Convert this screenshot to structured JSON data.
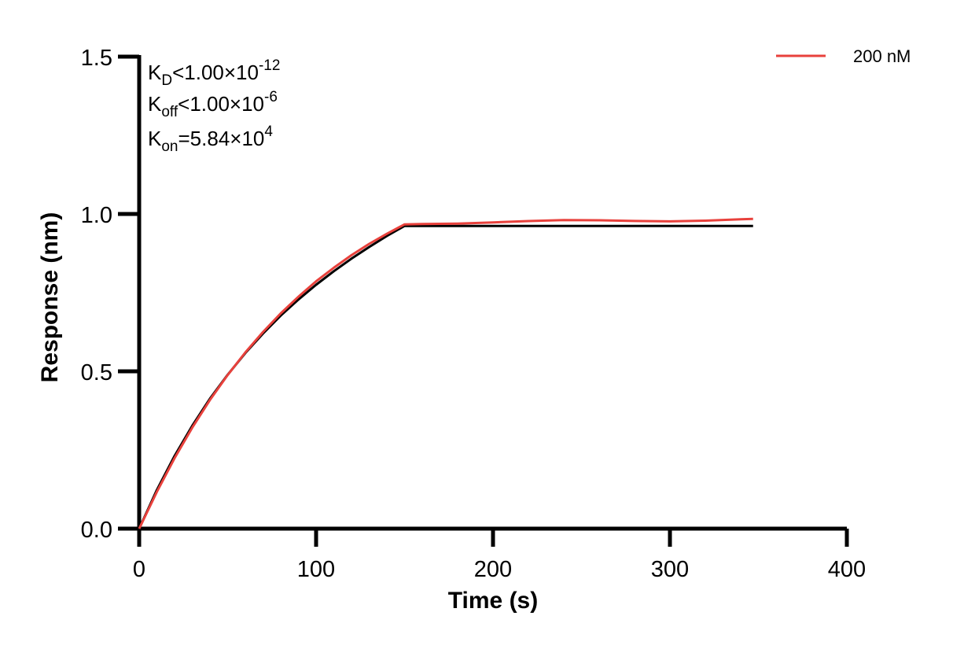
{
  "chart_data": {
    "type": "line",
    "xlabel": "Time (s)",
    "ylabel": "Response (nm)",
    "xlim": [
      0,
      400
    ],
    "ylim": [
      0,
      1.5
    ],
    "x_ticks": [
      "0",
      "100",
      "200",
      "300",
      "400"
    ],
    "y_ticks": [
      "0.0",
      "0.5",
      "1.0",
      "1.5"
    ],
    "grid": false,
    "legend_position": "top-right",
    "legend": [
      "200 nM"
    ],
    "annotations": [
      {
        "base": "K",
        "sub": "D",
        "op": "<",
        "value": "1.00×10",
        "exp": "-12"
      },
      {
        "base": "K",
        "sub": "off",
        "op": "<",
        "value": "1.00×10",
        "exp": "-6"
      },
      {
        "base": "K",
        "sub": "on",
        "op": "=",
        "value": "5.84×10",
        "exp": "4"
      }
    ],
    "series": [
      {
        "name": "200 nM",
        "role": "measured",
        "color": "#e8413c",
        "x": [
          0,
          10,
          20,
          30,
          40,
          50,
          60,
          70,
          80,
          90,
          100,
          110,
          120,
          130,
          140,
          150,
          160,
          180,
          200,
          220,
          240,
          260,
          280,
          300,
          320,
          340,
          347
        ],
        "y": [
          0.0,
          0.117,
          0.224,
          0.321,
          0.409,
          0.488,
          0.56,
          0.625,
          0.684,
          0.737,
          0.786,
          0.829,
          0.869,
          0.905,
          0.937,
          0.967,
          0.97,
          0.973,
          0.975,
          0.976,
          0.977,
          0.978,
          0.979,
          0.98,
          0.981,
          0.982,
          0.981
        ]
      },
      {
        "role": "fit",
        "color": "#000000",
        "x": [
          0,
          10,
          20,
          30,
          40,
          50,
          60,
          70,
          80,
          90,
          100,
          110,
          120,
          130,
          140,
          150,
          200,
          250,
          300,
          347
        ],
        "y": [
          0.0,
          0.123,
          0.231,
          0.327,
          0.413,
          0.489,
          0.558,
          0.62,
          0.677,
          0.728,
          0.775,
          0.818,
          0.858,
          0.895,
          0.93,
          0.962,
          0.962,
          0.962,
          0.962,
          0.962
        ]
      }
    ]
  }
}
